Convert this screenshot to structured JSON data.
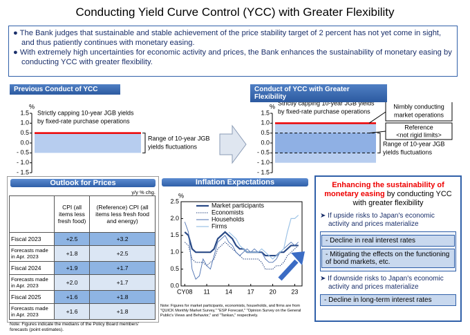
{
  "title": "Conducting Yield Curve Control (YCC) with Greater Flexibility",
  "bullets": [
    "The Bank judges that sustainable and stable achievement of the price stability target of 2 percent has not yet come in sight, and thus patiently continues with monetary easing.",
    "With extremely high uncertainties for economic activity and prices, the Bank enhances the sustainability of monetary easing by conducting YCC with greater flexibility."
  ],
  "previous": {
    "heading": "Previous Conduct of YCC",
    "unit": "%",
    "ylim": [
      -1.5,
      1.5
    ],
    "yticks": [
      {
        "value": 1.5,
        "label": "1.5"
      },
      {
        "value": 1,
        "label": "1.0"
      },
      {
        "value": 0.5,
        "label": "0.5"
      },
      {
        "value": 0,
        "label": "0.0"
      },
      {
        "value": -0.5,
        "label": "- 0.5"
      },
      {
        "value": -1,
        "label": "- 1.0"
      },
      {
        "value": -1.5,
        "label": "- 1.5"
      }
    ],
    "cap": 0.5,
    "band": [
      -0.5,
      0.5
    ],
    "cap_label": [
      "Strictly capping 10-year JGB yields",
      "by fixed-rate purchase operations"
    ],
    "range_label": [
      "Range of 10-year JGB",
      "yields fluctuations"
    ]
  },
  "flexible": {
    "heading": "Conduct of YCC with Greater Flexibility",
    "unit": "%",
    "ylim": [
      -1.5,
      1.5
    ],
    "yticks": [
      {
        "value": 1.5,
        "label": "1.5"
      },
      {
        "value": 1,
        "label": "1.0"
      },
      {
        "value": 0.5,
        "label": "0.5"
      },
      {
        "value": 0,
        "label": "0.0"
      },
      {
        "value": -0.5,
        "label": "- 0.5"
      },
      {
        "value": -1,
        "label": "- 1.0"
      },
      {
        "value": -1.5,
        "label": "- 1.5"
      }
    ],
    "cap": 1,
    "band": [
      -1,
      1
    ],
    "reference": [
      -0.5,
      0.5
    ],
    "cap_label": [
      "Strictly capping 10-year JGB yields",
      "by fixed-rate purchase operations"
    ],
    "nimble_label": [
      "Nimbly conducting",
      "market operations"
    ],
    "reference_label": [
      "Reference",
      "<not rigid limits>"
    ],
    "range_label": [
      "Range of 10-year JGB",
      "yields fluctuations"
    ]
  },
  "outlook": {
    "heading": "Outlook for Prices",
    "unit": "y/y % chg.",
    "columns": [
      "CPI (all items less fresh food)",
      "(Reference) CPI (all items less fresh food and energy)"
    ],
    "rows": [
      [
        "Fiscal 2023",
        "+2.5",
        "+3.2"
      ],
      [
        "Forecasts made in Apr. 2023",
        "+1.8",
        "+2.5"
      ],
      [
        "Fiscal 2024",
        "+1.9",
        "+1.7"
      ],
      [
        "Forecasts made in Apr. 2023",
        "+2.0",
        "+1.7"
      ],
      [
        "Fiscal 2025",
        "+1.6",
        "+1.8"
      ],
      [
        "Forecasts made in Apr. 2023",
        "+1.6",
        "+1.8"
      ]
    ],
    "note": "Note: Figures indicate the medians of the Policy Board members' forecasts (point estimates)."
  },
  "inflation": {
    "type": "line",
    "title": "Inflation Expectations",
    "unit": "%",
    "x": [
      2008,
      2008.5,
      2009,
      2009.5,
      2010,
      2010.5,
      2011,
      2011.5,
      2012,
      2012.5,
      2013,
      2013.5,
      2014,
      2014.5,
      2015,
      2015.5,
      2016,
      2016.5,
      2017,
      2017.5,
      2018,
      2018.5,
      2019,
      2019.5,
      2020,
      2020.5,
      2021,
      2021.5,
      2022,
      2022.5,
      2023,
      2023.5
    ],
    "xlim": [
      2007.5,
      2024
    ],
    "xticks": [
      {
        "value": 2008,
        "label": "CY08"
      },
      {
        "value": 2011,
        "label": "11"
      },
      {
        "value": 2014,
        "label": "14"
      },
      {
        "value": 2017,
        "label": "17"
      },
      {
        "value": 2020,
        "label": "20"
      },
      {
        "value": 2023,
        "label": "23"
      }
    ],
    "ylim": [
      0,
      2.5
    ],
    "yticks": [
      {
        "value": 0,
        "label": "0.0"
      },
      {
        "value": 0.5,
        "label": "0.5"
      },
      {
        "value": 1,
        "label": "1.0"
      },
      {
        "value": 1.5,
        "label": "1.5"
      },
      {
        "value": 2,
        "label": "2.0"
      },
      {
        "value": 2.5,
        "label": "2.5"
      }
    ],
    "series": [
      {
        "name": "Market participants",
        "color": "#2a4a86",
        "values": [
          1.6,
          1.5,
          1.1,
          1.0,
          1.0,
          1.0,
          1.0,
          1.0,
          1.1,
          1.4,
          1.5,
          1.6,
          1.5,
          1.4,
          1.2,
          1.1,
          1.1,
          1.0,
          1.0,
          1.0,
          1.0,
          1.0,
          0.9,
          0.9,
          0.9,
          0.9,
          1.0,
          1.0,
          1.1,
          1.2,
          1.2,
          1.2
        ]
      },
      {
        "name": "Economists",
        "color": "#1f3d7a",
        "values": [
          1.3,
          1.2,
          0.8,
          0.7,
          0.7,
          0.7,
          0.6,
          0.7,
          0.8,
          1.1,
          1.2,
          1.3,
          1.2,
          1.1,
          1.0,
          0.9,
          0.8,
          0.8,
          0.8,
          0.8,
          0.8,
          0.7,
          0.5,
          0.5,
          0.5,
          0.6,
          0.6,
          0.7,
          0.9,
          1.0,
          1.1,
          1.2
        ]
      },
      {
        "name": "Households",
        "color": "#4a6fb0",
        "values": [
          1.9,
          1.6,
          0.5,
          0.2,
          0.3,
          0.8,
          0.6,
          0.5,
          0.9,
          1.3,
          1.4,
          1.5,
          1.3,
          1.2,
          1.0,
          0.9,
          1.0,
          1.1,
          1.0,
          1.1,
          1.0,
          1.0,
          0.8,
          0.7,
          0.7,
          0.8,
          1.0,
          1.1,
          1.2,
          1.3,
          1.2,
          1.3
        ]
      },
      {
        "name": "Firms",
        "color": "#9dc3e6",
        "values": [
          null,
          null,
          null,
          null,
          null,
          null,
          null,
          null,
          null,
          null,
          null,
          null,
          1.6,
          1.5,
          1.4,
          1.2,
          1.1,
          1.0,
          1.0,
          1.0,
          1.0,
          1.1,
          1.0,
          0.9,
          0.8,
          0.9,
          1.0,
          1.1,
          1.6,
          2.0,
          2.0,
          2.1
        ]
      }
    ],
    "note": "Note: Figures for market participants, economists, households, and firms are from \"QUICK Monthly Market Survey,\" \"ESP Forecast,\" \"Opinion Survey on the General Public's Views and Behavior,\" and \"Tankan,\" respectively."
  },
  "enhancing": {
    "title_red": "Enhancing the sustainability of monetary easing",
    "title_rest": "by conducting YCC with greater flexibility",
    "upside": "If upside risks to Japan's economic activity and prices materialize",
    "upside_items": [
      "- Decline in real interest rates",
      "- Mitigating the effects on the functioning of bond markets, etc."
    ],
    "downside": "If downside risks to Japan's economic activity and prices materialize",
    "downside_items": [
      "- Decline in long-term interest rates"
    ]
  }
}
